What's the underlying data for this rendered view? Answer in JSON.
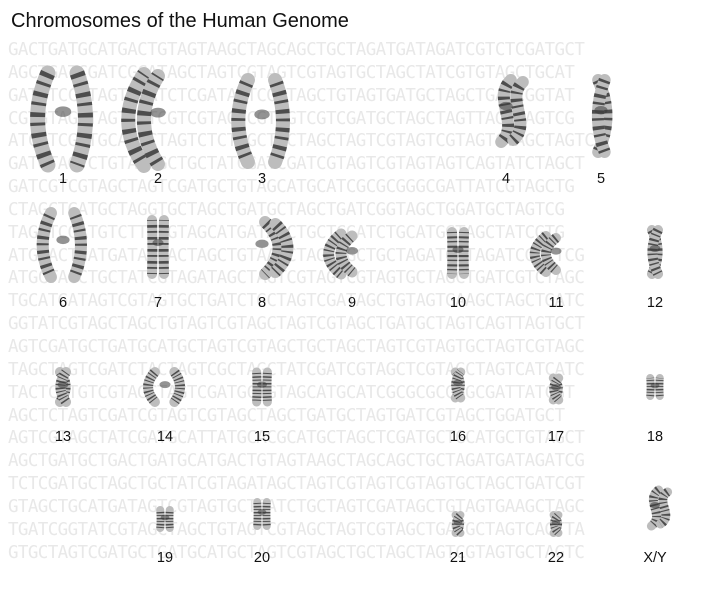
{
  "title": "Chromosomes of the Human Genome",
  "background_sequence": [
    "GACTGATGCATGACTGTAGTAAGCTAGCAGCTGCTAGATGATAGATCGTCTCGATGCT",
    "AGCTGATCGATCGCATAGCTAGTCGTAGTCGTAGTGCTAGCTATCGTGTAGCTGCAT",
    "GATCTCCGTAGTCGATCTCGATAGTCGATAGCTGTAGTGATGCTAGCTGATCGGTAT",
    "CGTGTAGCTAGTCGTCGTCGTAGTCGTAGTCGTCGATGCTAGCTAGTTAGCTAGTCG",
    "ATCGTCGATGCATGCTAGTCTCTAGCTGCTAGCTAGTCGTAGTCGTAGTCTAGCTAGTC",
    "GATGTAGTCTGTAGTGCTGCTATCGATCGATCGTAGTCGTAGTAGTCAGTATCTAGCT",
    "GATCGTCGTAGCTAGTCGATGCTGTAGCATGCATCGCGCGGGCGATTATCGTAGCTG",
    "CTAGCTGATGCTAGGTGCTAGCTGATGCTAGCTGATCGGTAGCTGGATGCTAGTCG",
    "TAGATCGATGTCTTATGTAGCATGATAGCTGCTCGATCTGCATGGTAGCTATCGTG",
    "ATGTACTGATGATATGACTAGCTGTAAGCTAGCAGCTGCTAGATGATAGATCGTCTCG",
    "ATGCTAGCTGCTATCGTAGATAGCTAGTCGTAGTCGTAGTGCTAGCTGATCGTCTAGC",
    "TGCATGATAGTCGTAGTGCTGATCTGCTAGTCGATAGCTGTAGTGAAGCTAGCTGATC",
    "GGTATCGTAGCTAGCTGTAGTCGTAGCTAGTCGTAGCTGATGCTAGTCAGTTAGTGCT",
    "AGTCGATGCTGATGCATGCTAGTCGTAGCTGCTAGCTAGTCGTAGTGCTAGTCGTAGC",
    "TAGCTAGTCGATCTACTAGTCGCTAGCTATCGATCGTAGCTCGTAGCTAGTCATCATC",
    "TACTCATGTCGTAGCTAGTCGATGCTGTAGCATGCATCGCGCGCGGGCGATTATCGT",
    "AGCTCTAGTCGATCGTAGTCGTAGCTAGCTGATGCTAGTGATCGTAGCTGGATGCT",
    "AGTCGTAGCTATCGATGCATTATGCACGCATGCTAGCTCGATGCTGCATGCTGTAGCT",
    "AGCTGATGCTGACTGATGCATGACTGTAGTAAGCTAGCAGCTGCTAGATGATAGATCG",
    "TCTCGATGCTAGCTGCTATCGTAGATAGCTAGTCGTAGTCGTAGTGCTAGCTGATCGT",
    "GTAGCTGCATGATAGTCGTAGTGCTGATCTGCTAGTCGATAGCTGTAGTGAAGCTAGC",
    "TGATCGGTATCGTAGCTAGCTGTAGTCGTAGCTAGTCGTAGCTGATGCTAGTCAGTTA",
    "GTGCTAGTCGATGCTGATGCATGCTAGTCGTAGCTGCTAGCTAGTCGTAGTGCTAGTC"
  ],
  "chromosomes": [
    {
      "label": "1"
    },
    {
      "label": "2"
    },
    {
      "label": "3"
    },
    {
      "label": "4"
    },
    {
      "label": "5"
    },
    {
      "label": "6"
    },
    {
      "label": "7"
    },
    {
      "label": "8"
    },
    {
      "label": "9"
    },
    {
      "label": "10"
    },
    {
      "label": "11"
    },
    {
      "label": "12"
    },
    {
      "label": "13"
    },
    {
      "label": "14"
    },
    {
      "label": "15"
    },
    {
      "label": "16"
    },
    {
      "label": "17"
    },
    {
      "label": "18"
    },
    {
      "label": "19"
    },
    {
      "label": "20"
    },
    {
      "label": "21"
    },
    {
      "label": "22"
    },
    {
      "label": "X/Y"
    }
  ],
  "colors": {
    "chromatid": "#bdbdbd",
    "band": "#3a3a3a",
    "label": "#111111",
    "sequence": "#e8e8e8"
  }
}
